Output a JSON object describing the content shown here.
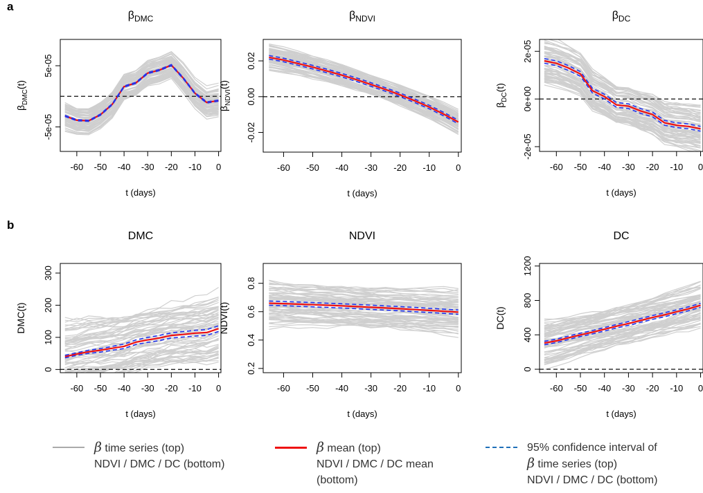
{
  "panels": {
    "a": "a",
    "b": "b"
  },
  "chart_data": [
    {
      "type": "line",
      "title": "βDMC",
      "title_main": "β",
      "title_sub": "DMC",
      "xlabel": "t (days)",
      "ylabel": "βDMC(t)",
      "ylabel_main": "β",
      "ylabel_sub": "DMC",
      "ylabel_suffix": "(t)",
      "x": [
        -65,
        -60,
        -55,
        -50,
        -45,
        -40,
        -35,
        -30,
        -25,
        -20,
        -15,
        -10,
        -5,
        0
      ],
      "xlim": [
        -67,
        1
      ],
      "ylim": [
        -9e-05,
        9.3e-05
      ],
      "xticks": [
        -60,
        -50,
        -40,
        -30,
        -20,
        -10,
        0
      ],
      "xtick_labels": [
        "-60",
        "-50",
        "-40",
        "-30",
        "-20",
        "-10",
        "0"
      ],
      "yticks": [
        -5e-05,
        5e-05
      ],
      "ytick_labels": [
        "-5e-05",
        "5e-05"
      ],
      "hline": 0,
      "series": [
        {
          "values": [
            -3.3e-05,
            -4e-05,
            -4.1e-05,
            -3.1e-05,
            -1.4e-05,
            1.5e-05,
            2.1e-05,
            3.7e-05,
            4.2e-05,
            5e-05,
            2.9e-05,
            4e-06,
            -1.1e-05,
            -8e-06
          ]
        },
        {
          "values": [
            -3.2e-05,
            -3.9e-05,
            -4e-05,
            -3e-05,
            -1.3e-05,
            1.6e-05,
            2.2e-05,
            3.8e-05,
            4.3e-05,
            5.1e-05,
            3e-05,
            5e-06,
            -1e-05,
            -7e-06
          ]
        },
        {
          "values": [
            -3.1e-05,
            -3.8e-05,
            -3.9e-05,
            -2.9e-05,
            -1.2e-05,
            1.7e-05,
            2.3e-05,
            3.9e-05,
            4.4e-05,
            5.2e-05,
            3.1e-05,
            6e-06,
            -9e-06,
            -6e-06
          ]
        }
      ],
      "band_width": 2e-05
    },
    {
      "type": "line",
      "title": "βNDVI",
      "title_main": "β",
      "title_sub": "NDVI",
      "xlabel": "t (days)",
      "ylabel": "βNDVI(t)",
      "ylabel_main": "β",
      "ylabel_sub": "NDVI",
      "ylabel_suffix": "(t)",
      "x": [
        -65,
        -60,
        -55,
        -50,
        -45,
        -40,
        -35,
        -30,
        -25,
        -20,
        -15,
        -10,
        -5,
        0
      ],
      "xlim": [
        -67,
        1
      ],
      "ylim": [
        -0.031,
        0.032
      ],
      "xticks": [
        -60,
        -50,
        -40,
        -30,
        -20,
        -10,
        0
      ],
      "xtick_labels": [
        "-60",
        "-50",
        "-40",
        "-30",
        "-20",
        "-10",
        "0"
      ],
      "yticks": [
        -0.02,
        0.0,
        0.02
      ],
      "ytick_labels": [
        "-0.02",
        "0.00",
        "0.02"
      ],
      "hline": 0,
      "series": [
        {
          "values": [
            0.021,
            0.0195,
            0.0175,
            0.0155,
            0.0133,
            0.011,
            0.0085,
            0.0058,
            0.003,
            0.0,
            -0.0033,
            -0.0068,
            -0.0108,
            -0.0152
          ]
        },
        {
          "values": [
            0.022,
            0.0205,
            0.0185,
            0.0165,
            0.0143,
            0.012,
            0.0095,
            0.0068,
            0.004,
            0.001,
            -0.0023,
            -0.0058,
            -0.0098,
            -0.0142
          ]
        },
        {
          "values": [
            0.023,
            0.0215,
            0.0195,
            0.0175,
            0.0153,
            0.013,
            0.0105,
            0.0078,
            0.005,
            0.002,
            -0.0013,
            -0.0048,
            -0.0088,
            -0.0132
          ]
        }
      ],
      "band_width": 0.006
    },
    {
      "type": "line",
      "title": "βDC",
      "title_main": "β",
      "title_sub": "DC",
      "xlabel": "t (days)",
      "ylabel": "βDC(t)",
      "ylabel_main": "β",
      "ylabel_sub": "DC",
      "ylabel_suffix": "(t)",
      "x": [
        -65,
        -60,
        -55,
        -50,
        -45,
        -40,
        -35,
        -30,
        -25,
        -20,
        -15,
        -10,
        -5,
        0
      ],
      "xlim": [
        -67,
        1
      ],
      "ylim": [
        -2.2e-05,
        2.5e-05
      ],
      "xticks": [
        -60,
        -50,
        -40,
        -30,
        -20,
        -10,
        0
      ],
      "xtick_labels": [
        "-60",
        "-50",
        "-40",
        "-30",
        "-20",
        "-10",
        "0"
      ],
      "yticks": [
        -2e-05,
        0,
        2e-05
      ],
      "ytick_labels": [
        "-2e-05",
        "0e+00",
        "2e-05"
      ],
      "hline": 0,
      "series": [
        {
          "values": [
            1.5e-05,
            1.4e-05,
            1.2e-05,
            9.5e-06,
            2.5e-06,
            0.0,
            -3.5e-06,
            -4e-06,
            -6e-06,
            -7.5e-06,
            -1.1e-05,
            -1.2e-05,
            -1.25e-05,
            -1.35e-05
          ]
        },
        {
          "values": [
            1.6e-05,
            1.5e-05,
            1.3e-05,
            1.05e-05,
            3.5e-06,
            1e-06,
            -2.5e-06,
            -3e-06,
            -5e-06,
            -6.5e-06,
            -1e-05,
            -1.1e-05,
            -1.15e-05,
            -1.25e-05
          ]
        },
        {
          "values": [
            1.7e-05,
            1.6e-05,
            1.4e-05,
            1.15e-05,
            4.5e-06,
            2e-06,
            -1.5e-06,
            -2e-06,
            -4e-06,
            -5.5e-06,
            -9e-06,
            -1e-05,
            -1.05e-05,
            -1.15e-05
          ]
        }
      ],
      "band_width": 8e-06
    },
    {
      "type": "line",
      "title": "DMC",
      "title_main": "DMC",
      "title_sub": "",
      "xlabel": "t (days)",
      "ylabel": "DMC(t)",
      "ylabel_main": "DMC(t)",
      "ylabel_sub": "",
      "ylabel_suffix": "",
      "x": [
        -65,
        -60,
        -55,
        -50,
        -45,
        -40,
        -35,
        -30,
        -25,
        -20,
        -15,
        -10,
        -5,
        0
      ],
      "xlim": [
        -67,
        1
      ],
      "ylim": [
        -10,
        330
      ],
      "xticks": [
        -60,
        -50,
        -40,
        -30,
        -20,
        -10,
        0
      ],
      "xtick_labels": [
        "-60",
        "-50",
        "-40",
        "-30",
        "-20",
        "-10",
        "0"
      ],
      "yticks": [
        0,
        100,
        200,
        300
      ],
      "ytick_labels": [
        "0",
        "100",
        "200",
        "300"
      ],
      "hline": 0,
      "series": [
        {
          "values": [
            36,
            44,
            50,
            54,
            60,
            65,
            78,
            84,
            90,
            98,
            101,
            104,
            106,
            118
          ]
        },
        {
          "values": [
            40,
            48,
            55,
            60,
            66,
            72,
            85,
            92,
            98,
            106,
            109,
            113,
            115,
            127
          ]
        },
        {
          "values": [
            44,
            52,
            60,
            65,
            72,
            79,
            92,
            100,
            106,
            114,
            118,
            122,
            124,
            136
          ]
        }
      ],
      "band_width": 90
    },
    {
      "type": "line",
      "title": "NDVI",
      "title_main": "NDVI",
      "title_sub": "",
      "xlabel": "t (days)",
      "ylabel": "NDVI(t)",
      "ylabel_main": "NDVI(t)",
      "ylabel_sub": "",
      "ylabel_suffix": "",
      "x": [
        -65,
        -60,
        -55,
        -50,
        -45,
        -40,
        -35,
        -30,
        -25,
        -20,
        -15,
        -10,
        -5,
        0
      ],
      "xlim": [
        -67,
        1
      ],
      "ylim": [
        0.17,
        0.94
      ],
      "xticks": [
        -60,
        -50,
        -40,
        -30,
        -20,
        -10,
        0
      ],
      "xtick_labels": [
        "-60",
        "-50",
        "-40",
        "-30",
        "-20",
        "-10",
        "0"
      ],
      "yticks": [
        0.2,
        0.4,
        0.6,
        0.8
      ],
      "ytick_labels": [
        "0.2",
        "0.4",
        "0.6",
        "0.8"
      ],
      "hline": null,
      "series": [
        {
          "values": [
            0.645,
            0.642,
            0.638,
            0.634,
            0.63,
            0.626,
            0.621,
            0.616,
            0.611,
            0.606,
            0.6,
            0.594,
            0.588,
            0.582
          ]
        },
        {
          "values": [
            0.66,
            0.657,
            0.653,
            0.649,
            0.645,
            0.641,
            0.636,
            0.631,
            0.626,
            0.621,
            0.615,
            0.609,
            0.603,
            0.597
          ]
        },
        {
          "values": [
            0.675,
            0.672,
            0.668,
            0.664,
            0.66,
            0.656,
            0.651,
            0.646,
            0.641,
            0.636,
            0.63,
            0.624,
            0.618,
            0.612
          ]
        }
      ],
      "band_width": 0.14
    },
    {
      "type": "line",
      "title": "DC",
      "title_main": "DC",
      "title_sub": "",
      "xlabel": "t (days)",
      "ylabel": "DC(t)",
      "ylabel_main": "DC(t)",
      "ylabel_sub": "",
      "ylabel_suffix": "",
      "x": [
        -65,
        -60,
        -55,
        -50,
        -45,
        -40,
        -35,
        -30,
        -25,
        -20,
        -15,
        -10,
        -5,
        0
      ],
      "xlim": [
        -67,
        1
      ],
      "ylim": [
        -40,
        1230
      ],
      "xticks": [
        -60,
        -50,
        -40,
        -30,
        -20,
        -10,
        0
      ],
      "xtick_labels": [
        "-60",
        "-50",
        "-40",
        "-30",
        "-20",
        "-10",
        "0"
      ],
      "yticks": [
        0,
        400,
        800,
        1200
      ],
      "ytick_labels": [
        "0",
        "400",
        "800",
        "1200"
      ],
      "hline": 0,
      "series": [
        {
          "values": [
            285,
            310,
            345,
            380,
            410,
            445,
            480,
            510,
            545,
            580,
            610,
            645,
            680,
            720
          ]
        },
        {
          "values": [
            305,
            330,
            365,
            400,
            430,
            465,
            500,
            532,
            567,
            602,
            633,
            668,
            703,
            743
          ]
        },
        {
          "values": [
            325,
            350,
            385,
            420,
            450,
            485,
            520,
            554,
            589,
            624,
            656,
            691,
            726,
            766
          ]
        }
      ],
      "band_width": 220
    }
  ],
  "legend": [
    {
      "kind": "gray-line",
      "color": "#aaaaaa",
      "symbol": "β",
      "lines": [
        " time series (top)",
        "NDVI / DMC / DC  (bottom)"
      ]
    },
    {
      "kind": "red-line",
      "color": "#ee1111",
      "symbol": "β",
      "lines": [
        " mean (top)",
        "NDVI / DMC / DC mean",
        "(bottom)"
      ]
    },
    {
      "kind": "blue-dashed",
      "color": "#1f6fb8",
      "symbol": "β",
      "lines": [
        "95% confidence interval of",
        " time series (top)",
        "NDVI / DMC / DC (bottom)"
      ]
    }
  ]
}
